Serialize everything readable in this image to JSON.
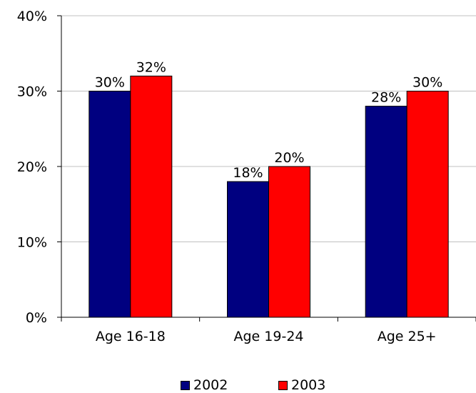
{
  "chart_data": {
    "type": "bar",
    "categories": [
      "Age 16-18",
      "Age 19-24",
      "Age 25+"
    ],
    "series": [
      {
        "name": "2002",
        "values": [
          30,
          18,
          28
        ],
        "labels": [
          "30%",
          "18%",
          "28%"
        ],
        "color": "#000080"
      },
      {
        "name": "2003",
        "values": [
          32,
          20,
          30
        ],
        "labels": [
          "32%",
          "20%",
          "30%"
        ],
        "color": "#ff0000"
      }
    ],
    "ylim": [
      0,
      40
    ],
    "yticks": [
      0,
      10,
      20,
      30,
      40
    ],
    "ytick_labels": [
      "0%",
      "10%",
      "20%",
      "30%",
      "40%"
    ],
    "grid": true,
    "legend_position": "bottom"
  }
}
